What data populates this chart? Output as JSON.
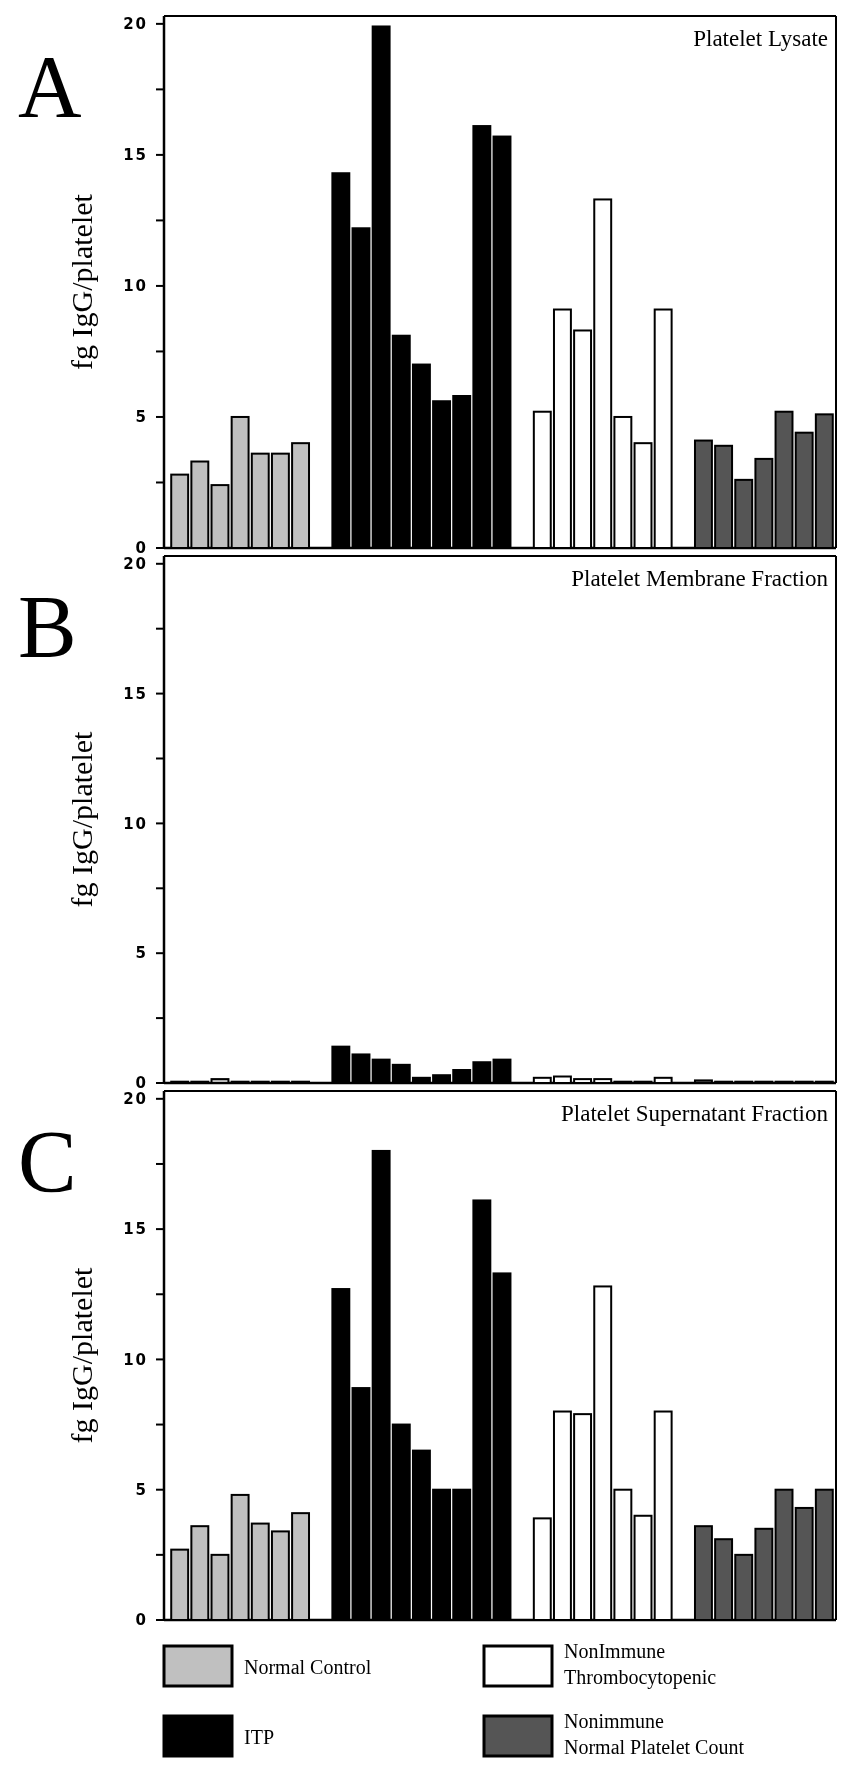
{
  "chart_data": [
    {
      "type": "bar",
      "title": "Platelet Lysate",
      "ylabel": "fg IgG/platelet",
      "annotations": [
        "A"
      ],
      "categories": [
        null,
        null,
        null,
        null,
        null,
        null,
        null,
        null,
        null,
        null,
        null,
        null,
        null,
        null,
        null,
        null,
        null,
        null,
        null,
        null,
        null,
        null,
        null,
        null,
        null,
        null,
        null,
        null,
        null,
        null,
        null,
        null,
        null
      ],
      "ylim": [
        0,
        20.3
      ],
      "yticks": [
        0,
        {
          "value": 2.5,
          "label": null
        },
        5,
        {
          "value": 7.5,
          "label": null
        },
        10,
        {
          "value": 12.5,
          "label": null
        },
        15,
        {
          "value": 17.5,
          "label": null
        },
        20
      ],
      "series": [
        {
          "color": "#c0c0c0",
          "values": [
            2.8,
            3.3,
            2.4,
            5.0,
            3.6,
            3.6,
            4.0,
            null,
            null,
            null,
            null,
            null,
            null,
            null,
            null,
            null,
            null,
            null,
            null,
            null,
            null,
            null,
            null,
            null,
            null,
            null,
            null,
            null,
            null,
            null,
            null,
            null,
            null
          ]
        },
        {
          "color": "#000000",
          "values": [
            null,
            null,
            null,
            null,
            null,
            null,
            null,
            null,
            14.3,
            12.2,
            19.9,
            8.1,
            7.0,
            5.6,
            5.8,
            16.1,
            15.7,
            null,
            null,
            null,
            null,
            null,
            null,
            null,
            null,
            null,
            null,
            null,
            null,
            null,
            null,
            null,
            null
          ]
        },
        {
          "color": "#ffffff",
          "values": [
            null,
            null,
            null,
            null,
            null,
            null,
            null,
            null,
            null,
            null,
            null,
            null,
            null,
            null,
            null,
            null,
            null,
            null,
            5.2,
            9.1,
            8.3,
            13.3,
            5.0,
            4.0,
            9.1,
            null,
            null,
            null,
            null,
            null,
            null,
            null,
            null
          ]
        },
        {
          "color": "#555555",
          "values": [
            null,
            null,
            null,
            null,
            null,
            null,
            null,
            null,
            null,
            null,
            null,
            null,
            null,
            null,
            null,
            null,
            null,
            null,
            null,
            null,
            null,
            null,
            null,
            null,
            null,
            null,
            4.1,
            3.9,
            2.6,
            3.4,
            5.2,
            4.4,
            5.1
          ]
        }
      ]
    },
    {
      "type": "bar",
      "title": "Platelet Membrane Fraction",
      "ylabel": "fg IgG/platelet",
      "annotations": [
        "B"
      ],
      "categories": [
        null,
        null,
        null,
        null,
        null,
        null,
        null,
        null,
        null,
        null,
        null,
        null,
        null,
        null,
        null,
        null,
        null,
        null,
        null,
        null,
        null,
        null,
        null,
        null,
        null,
        null,
        null,
        null,
        null,
        null,
        null,
        null,
        null
      ],
      "ylim": [
        0,
        20.3
      ],
      "yticks": [
        0,
        {
          "value": 2.5,
          "label": null
        },
        5,
        {
          "value": 7.5,
          "label": null
        },
        10,
        {
          "value": 12.5,
          "label": null
        },
        15,
        {
          "value": 17.5,
          "label": null
        },
        20
      ],
      "series": [
        {
          "color": "#c0c0c0",
          "values": [
            0.05,
            0.05,
            0.15,
            0.05,
            0.05,
            0.05,
            0.05,
            null,
            null,
            null,
            null,
            null,
            null,
            null,
            null,
            null,
            null,
            null,
            null,
            null,
            null,
            null,
            null,
            null,
            null,
            null,
            null,
            null,
            null,
            null,
            null,
            null,
            null
          ]
        },
        {
          "color": "#000000",
          "values": [
            null,
            null,
            null,
            null,
            null,
            null,
            null,
            null,
            1.4,
            1.1,
            0.9,
            0.7,
            0.2,
            0.3,
            0.5,
            0.8,
            0.9,
            null,
            null,
            null,
            null,
            null,
            null,
            null,
            null,
            null,
            null,
            null,
            null,
            null,
            null,
            null,
            null
          ]
        },
        {
          "color": "#ffffff",
          "values": [
            null,
            null,
            null,
            null,
            null,
            null,
            null,
            null,
            null,
            null,
            null,
            null,
            null,
            null,
            null,
            null,
            null,
            null,
            0.2,
            0.25,
            0.15,
            0.15,
            0.05,
            0.05,
            0.2,
            null,
            null,
            null,
            null,
            null,
            null,
            null,
            null
          ]
        },
        {
          "color": "#555555",
          "values": [
            null,
            null,
            null,
            null,
            null,
            null,
            null,
            null,
            null,
            null,
            null,
            null,
            null,
            null,
            null,
            null,
            null,
            null,
            null,
            null,
            null,
            null,
            null,
            null,
            null,
            null,
            0.1,
            0.05,
            0.05,
            0.05,
            0.05,
            0.05,
            0.05
          ]
        }
      ]
    },
    {
      "type": "bar",
      "title": "Platelet Supernatant Fraction",
      "ylabel": "fg IgG/platelet",
      "annotations": [
        "C"
      ],
      "legend": "bottom",
      "categories": [
        null,
        null,
        null,
        null,
        null,
        null,
        null,
        null,
        null,
        null,
        null,
        null,
        null,
        null,
        null,
        null,
        null,
        null,
        null,
        null,
        null,
        null,
        null,
        null,
        null,
        null,
        null,
        null,
        null,
        null,
        null,
        null,
        null
      ],
      "ylim": [
        0,
        20.3
      ],
      "yticks": [
        0,
        {
          "value": 2.5,
          "label": null
        },
        5,
        {
          "value": 7.5,
          "label": null
        },
        10,
        {
          "value": 12.5,
          "label": null
        },
        15,
        {
          "value": 17.5,
          "label": null
        },
        20
      ],
      "series": [
        {
          "name": "Normal Control",
          "color": "#c0c0c0",
          "values": [
            2.7,
            3.6,
            2.5,
            4.8,
            3.7,
            3.4,
            4.1,
            null,
            null,
            null,
            null,
            null,
            null,
            null,
            null,
            null,
            null,
            null,
            null,
            null,
            null,
            null,
            null,
            null,
            null,
            null,
            null,
            null,
            null,
            null,
            null,
            null,
            null
          ]
        },
        {
          "name": "ITP",
          "color": "#000000",
          "values": [
            null,
            null,
            null,
            null,
            null,
            null,
            null,
            null,
            12.7,
            8.9,
            18.0,
            7.5,
            6.5,
            5.0,
            5.0,
            16.1,
            13.3,
            null,
            null,
            null,
            null,
            null,
            null,
            null,
            null,
            null,
            null,
            null,
            null,
            null,
            null,
            null,
            null
          ]
        },
        {
          "name": "NonImmune Thrombocytopenic",
          "color": "#ffffff",
          "values": [
            null,
            null,
            null,
            null,
            null,
            null,
            null,
            null,
            null,
            null,
            null,
            null,
            null,
            null,
            null,
            null,
            null,
            null,
            3.9,
            8.0,
            7.9,
            12.8,
            5.0,
            4.0,
            8.0,
            null,
            null,
            null,
            null,
            null,
            null,
            null,
            null
          ]
        },
        {
          "name": "Nonimmune Normal Platelet Count",
          "color": "#555555",
          "values": [
            null,
            null,
            null,
            null,
            null,
            null,
            null,
            null,
            null,
            null,
            null,
            null,
            null,
            null,
            null,
            null,
            null,
            null,
            null,
            null,
            null,
            null,
            null,
            null,
            null,
            null,
            3.6,
            3.1,
            2.5,
            3.5,
            5.0,
            4.3,
            5.0
          ]
        }
      ]
    }
  ]
}
